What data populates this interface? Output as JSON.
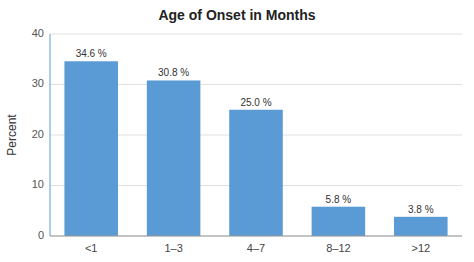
{
  "chart_data": {
    "type": "bar",
    "title": "Age of Onset in Months",
    "categories": [
      "<1",
      "1–3",
      "4–7",
      "8–12",
      ">12"
    ],
    "values": [
      34.6,
      30.8,
      25.0,
      5.8,
      3.8
    ],
    "value_labels": [
      "34.6 %",
      "30.8 %",
      "25.0 %",
      "5.8 %",
      "3.8 %"
    ],
    "data_labels": true,
    "color": "#5b9bd5",
    "ylabel": "Percent",
    "ylim": [
      0,
      40
    ],
    "yticks": [
      0,
      10,
      20,
      30,
      40
    ],
    "grid": true
  }
}
